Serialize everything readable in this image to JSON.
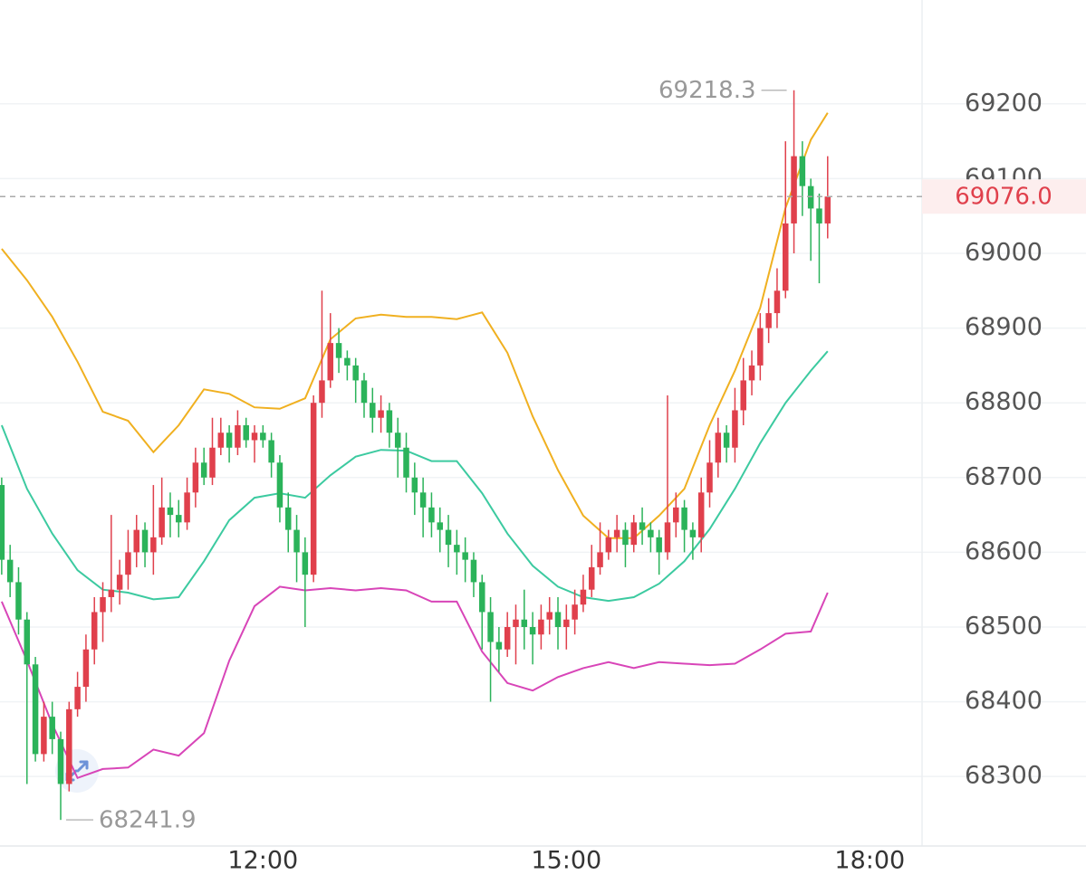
{
  "chart_data": {
    "type": "candlestick",
    "up_color": "#e0404c",
    "down_color": "#2bb35a",
    "xlim": [
      "09:24",
      "18:31"
    ],
    "xticks": [
      "12:00",
      "15:00",
      "18:00"
    ],
    "ylim": [
      68207,
      69339
    ],
    "yticks": [
      68300,
      68400,
      68500,
      68600,
      68700,
      68800,
      68900,
      69000,
      69100,
      69200
    ],
    "grid": true,
    "x": [
      "09:25",
      "09:30",
      "09:35",
      "09:40",
      "09:45",
      "09:50",
      "09:55",
      "10:00",
      "10:05",
      "10:10",
      "10:15",
      "10:20",
      "10:25",
      "10:30",
      "10:35",
      "10:40",
      "10:45",
      "10:50",
      "10:55",
      "11:00",
      "11:05",
      "11:10",
      "11:15",
      "11:20",
      "11:25",
      "11:30",
      "11:35",
      "11:40",
      "11:45",
      "11:50",
      "11:55",
      "12:00",
      "12:05",
      "12:10",
      "12:15",
      "12:20",
      "12:25",
      "12:30",
      "12:35",
      "12:40",
      "12:45",
      "12:50",
      "12:55",
      "13:00",
      "13:05",
      "13:10",
      "13:15",
      "13:20",
      "13:25",
      "13:30",
      "13:35",
      "13:40",
      "13:45",
      "13:50",
      "13:55",
      "14:00",
      "14:05",
      "14:10",
      "14:15",
      "14:20",
      "14:25",
      "14:30",
      "14:35",
      "14:40",
      "14:45",
      "14:50",
      "14:55",
      "15:00",
      "15:05",
      "15:10",
      "15:15",
      "15:20",
      "15:25",
      "15:30",
      "15:35",
      "15:40",
      "15:45",
      "15:50",
      "15:55",
      "16:00",
      "16:05",
      "16:10",
      "16:15",
      "16:20",
      "16:25",
      "16:30",
      "16:35",
      "16:40",
      "16:45",
      "16:50",
      "16:55",
      "17:00",
      "17:05",
      "17:10",
      "17:15",
      "17:20",
      "17:25",
      "17:30",
      "17:35"
    ],
    "open": [
      68690,
      68590,
      68560,
      68510,
      68450,
      68330,
      68380,
      68350,
      68290,
      68390,
      68420,
      68470,
      68520,
      68540,
      68550,
      68570,
      68600,
      68630,
      68600,
      68620,
      68660,
      68650,
      68640,
      68680,
      68720,
      68700,
      68740,
      68760,
      68740,
      68770,
      68750,
      68760,
      68750,
      68720,
      68660,
      68630,
      68600,
      68570,
      68800,
      68830,
      68880,
      68860,
      68850,
      68830,
      68800,
      68780,
      68790,
      68760,
      68740,
      68700,
      68680,
      68660,
      68640,
      68630,
      68610,
      68600,
      68590,
      68560,
      68520,
      68480,
      68470,
      68500,
      68510,
      68500,
      68490,
      68510,
      68520,
      68500,
      68510,
      68530,
      68550,
      68580,
      68600,
      68620,
      68630,
      68610,
      68640,
      68630,
      68620,
      68600,
      68640,
      68660,
      68630,
      68620,
      68680,
      68720,
      68760,
      68740,
      68790,
      68830,
      68850,
      68900,
      68920,
      68950,
      69040,
      69130,
      69090,
      69060,
      69040
    ],
    "high": [
      68700,
      68610,
      68580,
      68520,
      68460,
      68400,
      68400,
      68360,
      68400,
      68440,
      68490,
      68540,
      68560,
      68650,
      68590,
      68630,
      68650,
      68640,
      68690,
      68700,
      68680,
      68670,
      68700,
      68740,
      68740,
      68780,
      68780,
      68770,
      68790,
      68780,
      68770,
      68770,
      68760,
      68730,
      68680,
      68650,
      68620,
      68810,
      68950,
      68920,
      68900,
      68870,
      68860,
      68840,
      68820,
      68810,
      68800,
      68780,
      68760,
      68720,
      68700,
      68680,
      68660,
      68650,
      68630,
      68620,
      68600,
      68570,
      68540,
      68500,
      68520,
      68530,
      68550,
      68520,
      68530,
      68540,
      68540,
      68530,
      68550,
      68570,
      68610,
      68640,
      68630,
      68650,
      68640,
      68650,
      68660,
      68640,
      68630,
      68810,
      68680,
      68670,
      68640,
      68700,
      68750,
      68780,
      68770,
      68820,
      68860,
      68870,
      68920,
      68940,
      68980,
      69150,
      69218.3,
      69150,
      69100,
      69080,
      69130
    ],
    "low": [
      68570,
      68540,
      68490,
      68290,
      68320,
      68320,
      68330,
      68241.9,
      68280,
      68380,
      68400,
      68450,
      68480,
      68520,
      68530,
      68550,
      68580,
      68580,
      68570,
      68610,
      68620,
      68620,
      68630,
      68660,
      68690,
      68690,
      68730,
      68720,
      68730,
      68740,
      68720,
      68740,
      68700,
      68640,
      68600,
      68560,
      68500,
      68560,
      68780,
      68820,
      68840,
      68830,
      68800,
      68780,
      68760,
      68760,
      68740,
      68700,
      68680,
      68650,
      68620,
      68620,
      68600,
      68580,
      68570,
      68560,
      68540,
      68470,
      68400,
      68440,
      68460,
      68450,
      68470,
      68450,
      68470,
      68490,
      68470,
      68470,
      68490,
      68520,
      68540,
      68570,
      68590,
      68600,
      68580,
      68600,
      68610,
      68600,
      68570,
      68590,
      68620,
      68600,
      68590,
      68600,
      68660,
      68700,
      68720,
      68720,
      68770,
      68810,
      68830,
      68880,
      68900,
      68940,
      69000,
      69050,
      68990,
      68960,
      69020
    ],
    "close": [
      68590,
      68560,
      68510,
      68450,
      68330,
      68380,
      68350,
      68290,
      68390,
      68420,
      68470,
      68520,
      68540,
      68550,
      68570,
      68600,
      68630,
      68600,
      68620,
      68660,
      68650,
      68640,
      68680,
      68720,
      68700,
      68740,
      68760,
      68740,
      68770,
      68750,
      68760,
      68750,
      68720,
      68660,
      68630,
      68600,
      68570,
      68800,
      68830,
      68880,
      68860,
      68850,
      68830,
      68800,
      68780,
      68790,
      68760,
      68740,
      68700,
      68680,
      68660,
      68640,
      68630,
      68610,
      68600,
      68590,
      68560,
      68520,
      68480,
      68470,
      68500,
      68510,
      68500,
      68490,
      68510,
      68520,
      68500,
      68510,
      68530,
      68550,
      68580,
      68600,
      68620,
      68630,
      68610,
      68640,
      68630,
      68620,
      68600,
      68640,
      68660,
      68630,
      68620,
      68680,
      68720,
      68760,
      68740,
      68790,
      68830,
      68850,
      68900,
      68920,
      68950,
      69040,
      69130,
      69090,
      69060,
      69040,
      69076
    ],
    "last_price": {
      "value": 69076,
      "label": "69076.0"
    },
    "line_x": [
      "09:25",
      "09:40",
      "09:55",
      "10:10",
      "10:25",
      "10:40",
      "10:55",
      "11:10",
      "11:25",
      "11:40",
      "11:55",
      "12:10",
      "12:25",
      "12:40",
      "12:55",
      "13:10",
      "13:25",
      "13:40",
      "13:55",
      "14:10",
      "14:25",
      "14:40",
      "14:55",
      "15:10",
      "15:25",
      "15:40",
      "15:55",
      "16:10",
      "16:25",
      "16:40",
      "16:55",
      "17:10",
      "17:25",
      "17:35"
    ],
    "lines": [
      {
        "color": "#f0b020",
        "values": [
          69006,
          68964,
          68915,
          68855,
          68788,
          68776,
          68734,
          68770,
          68818,
          68812,
          68794,
          68792,
          68806,
          68885,
          68913,
          68918,
          68915,
          68915,
          68912,
          68921,
          68867,
          68782,
          68710,
          68649,
          68619,
          68619,
          68649,
          68685,
          68770,
          68843,
          68927,
          69061,
          69152,
          69188
        ]
      },
      {
        "color": "#3ccaa0",
        "values": [
          68770,
          68685,
          68625,
          68576,
          68550,
          68546,
          68537,
          68540,
          68588,
          68643,
          68673,
          68679,
          68673,
          68703,
          68728,
          68737,
          68736,
          68722,
          68722,
          68679,
          68625,
          68582,
          68554,
          68540,
          68535,
          68540,
          68558,
          68588,
          68631,
          68685,
          68746,
          68800,
          68843,
          68869
        ]
      },
      {
        "color": "#d845b8",
        "values": [
          68534,
          68455,
          68370,
          68298,
          68310,
          68312,
          68336,
          68328,
          68358,
          68455,
          68528,
          68554,
          68549,
          68552,
          68549,
          68552,
          68549,
          68534,
          68534,
          68467,
          68425,
          68415,
          68433,
          68445,
          68453,
          68445,
          68453,
          68451,
          68449,
          68451,
          68470,
          68491,
          68494,
          68546
        ]
      }
    ]
  }
}
